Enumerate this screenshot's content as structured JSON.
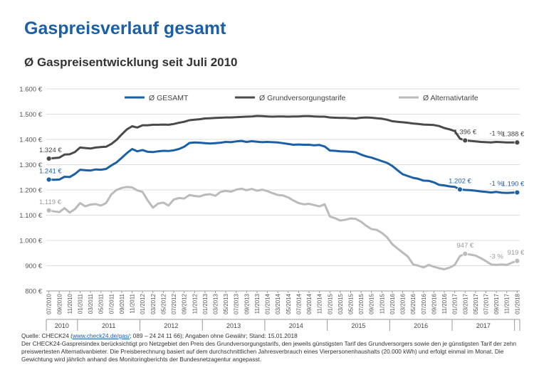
{
  "page": {
    "title": "Gaspreisverlauf gesamt",
    "chart_title": "Ø Gaspreisentwicklung seit Juli 2010"
  },
  "footer": {
    "source_prefix": "Quelle: CHECK24 (",
    "source_link": "www.check24.de/gas/",
    "source_suffix": "; 089 – 24 24 11 66); Angaben ohne Gewähr; Stand: 15.01.2018",
    "note": "Der CHECK24-Gaspreisindex berücksichtigt pro Netzgebiet den Preis des Grundversorgungstarifs, den jeweils günstigsten Tarif des Grundversorgers sowie den je günstigsten Tarif der zehn preiswertesten Alternativanbieter. Die Preisberechnung basiert auf dem durchschnittlichen Jahresverbrauch eines Vierpersonenhaushalts (20.000 kWh) und erfolgt einmal im Monat. Die Gewichtung wird jährlich anhand des Monitoringberichts der Bundesnetzagentur angepasst."
  },
  "chart_data": {
    "type": "line",
    "ylim": [
      800,
      1600
    ],
    "yticks": [
      "800 €",
      "900 €",
      "1.000 €",
      "1.100 €",
      "1.200 €",
      "1.300 €",
      "1.400 €",
      "1.500 €",
      "1.600 €"
    ],
    "grid": true,
    "legend_position": "top",
    "x_tick_labels": [
      "07/2010",
      "09/2010",
      "11/2010",
      "01/2011",
      "03/2011",
      "05/2011",
      "07/2011",
      "09/2011",
      "11/2011",
      "01/2012",
      "03/2012",
      "05/2012",
      "07/2012",
      "09/2012",
      "11/2012",
      "01/2013",
      "03/2013",
      "05/2013",
      "07/2013",
      "09/2013",
      "11/2013",
      "01/2014",
      "03/2014",
      "05/2014",
      "07/2014",
      "09/2014",
      "11/2014",
      "01/2015",
      "03/2015",
      "05/2015",
      "07/2015",
      "09/2015",
      "11/2015",
      "01/2016",
      "03/2016",
      "05/2016",
      "07/2016",
      "09/2016",
      "11/2016",
      "01/2017",
      "03/2017",
      "05/2017",
      "07/2017",
      "09/2017",
      "11/2017",
      "01/2018"
    ],
    "year_labels": [
      "2010",
      "2011",
      "2012",
      "2013",
      "2014",
      "2015",
      "2016",
      "2017"
    ],
    "x": [
      "07/2010",
      "08/2010",
      "09/2010",
      "10/2010",
      "11/2010",
      "12/2010",
      "01/2011",
      "02/2011",
      "03/2011",
      "04/2011",
      "05/2011",
      "06/2011",
      "07/2011",
      "08/2011",
      "09/2011",
      "10/2011",
      "11/2011",
      "12/2011",
      "01/2012",
      "02/2012",
      "03/2012",
      "04/2012",
      "05/2012",
      "06/2012",
      "07/2012",
      "08/2012",
      "09/2012",
      "10/2012",
      "11/2012",
      "12/2012",
      "01/2013",
      "02/2013",
      "03/2013",
      "04/2013",
      "05/2013",
      "06/2013",
      "07/2013",
      "08/2013",
      "09/2013",
      "10/2013",
      "11/2013",
      "12/2013",
      "01/2014",
      "02/2014",
      "03/2014",
      "04/2014",
      "05/2014",
      "06/2014",
      "07/2014",
      "08/2014",
      "09/2014",
      "10/2014",
      "11/2014",
      "12/2014",
      "01/2015",
      "02/2015",
      "03/2015",
      "04/2015",
      "05/2015",
      "06/2015",
      "07/2015",
      "08/2015",
      "09/2015",
      "10/2015",
      "11/2015",
      "12/2015",
      "01/2016",
      "02/2016",
      "03/2016",
      "04/2016",
      "05/2016",
      "06/2016",
      "07/2016",
      "08/2016",
      "09/2016",
      "10/2016",
      "11/2016",
      "12/2016",
      "01/2017",
      "02/2017",
      "03/2017",
      "04/2017",
      "05/2017",
      "06/2017",
      "07/2017",
      "08/2017",
      "09/2017",
      "10/2017",
      "11/2017",
      "12/2017",
      "01/2018"
    ],
    "series": [
      {
        "name": "Ø GESAMT",
        "color": "#1b5fa6",
        "values": [
          1241,
          1240,
          1241,
          1252,
          1251,
          1263,
          1280,
          1278,
          1277,
          1281,
          1280,
          1283,
          1297,
          1309,
          1327,
          1346,
          1362,
          1353,
          1358,
          1351,
          1350,
          1353,
          1355,
          1354,
          1357,
          1362,
          1371,
          1386,
          1388,
          1387,
          1385,
          1384,
          1385,
          1387,
          1390,
          1389,
          1392,
          1394,
          1390,
          1393,
          1391,
          1389,
          1390,
          1389,
          1388,
          1385,
          1382,
          1379,
          1380,
          1379,
          1379,
          1377,
          1378,
          1372,
          1356,
          1355,
          1353,
          1352,
          1351,
          1349,
          1340,
          1333,
          1328,
          1321,
          1314,
          1307,
          1295,
          1278,
          1262,
          1255,
          1248,
          1244,
          1237,
          1236,
          1230,
          1220,
          1218,
          1214,
          1212,
          1202,
          1200,
          1199,
          1197,
          1194,
          1192,
          1190,
          1192,
          1189,
          1188,
          1189,
          1190
        ]
      },
      {
        "name": "Ø Grundversorgungstarife",
        "color": "#4a4a4a",
        "values": [
          1324,
          1326,
          1328,
          1340,
          1341,
          1350,
          1368,
          1366,
          1364,
          1368,
          1370,
          1371,
          1382,
          1398,
          1420,
          1440,
          1452,
          1447,
          1456,
          1456,
          1458,
          1458,
          1459,
          1458,
          1461,
          1466,
          1470,
          1476,
          1478,
          1480,
          1483,
          1484,
          1485,
          1486,
          1487,
          1487,
          1488,
          1489,
          1490,
          1491,
          1493,
          1492,
          1491,
          1490,
          1491,
          1491,
          1490,
          1491,
          1491,
          1492,
          1492,
          1491,
          1490,
          1490,
          1487,
          1486,
          1485,
          1485,
          1484,
          1483,
          1486,
          1487,
          1486,
          1484,
          1482,
          1478,
          1472,
          1470,
          1468,
          1466,
          1463,
          1461,
          1459,
          1458,
          1457,
          1453,
          1445,
          1440,
          1433,
          1403,
          1396,
          1394,
          1392,
          1390,
          1389,
          1388,
          1390,
          1389,
          1388,
          1388,
          1388
        ]
      },
      {
        "name": "Ø Alternativtarife",
        "color": "#bbbbbb",
        "values": [
          1119,
          1115,
          1112,
          1128,
          1110,
          1124,
          1148,
          1135,
          1142,
          1144,
          1138,
          1148,
          1182,
          1200,
          1208,
          1212,
          1210,
          1198,
          1192,
          1158,
          1130,
          1146,
          1150,
          1138,
          1162,
          1168,
          1166,
          1180,
          1176,
          1174,
          1181,
          1183,
          1177,
          1192,
          1196,
          1193,
          1201,
          1205,
          1199,
          1204,
          1197,
          1201,
          1195,
          1187,
          1180,
          1178,
          1170,
          1158,
          1148,
          1143,
          1145,
          1140,
          1135,
          1143,
          1095,
          1088,
          1079,
          1082,
          1087,
          1085,
          1074,
          1058,
          1045,
          1042,
          1030,
          1012,
          985,
          968,
          952,
          936,
          905,
          900,
          893,
          903,
          896,
          890,
          886,
          892,
          903,
          938,
          947,
          944,
          940,
          930,
          918,
          905,
          903,
          905,
          903,
          912,
          919
        ]
      }
    ],
    "annotations": [
      {
        "text": "1.324 €",
        "series": 1,
        "index": 0
      },
      {
        "text": "1.241 €",
        "series": 0,
        "index": 0
      },
      {
        "text": "1.119 €",
        "series": 2,
        "index": 0
      },
      {
        "text": "1.396 €",
        "series": 1,
        "index": 80
      },
      {
        "text": "-1 %",
        "series": 1,
        "index": 86
      },
      {
        "text": "1.388 €",
        "series": 1,
        "index": 90
      },
      {
        "text": "1.202 €",
        "series": 0,
        "index": 79
      },
      {
        "text": "-1 %",
        "series": 0,
        "index": 86
      },
      {
        "text": "1.190 €",
        "series": 0,
        "index": 90
      },
      {
        "text": "947 €",
        "series": 2,
        "index": 80
      },
      {
        "text": "-3 %",
        "series": 2,
        "index": 86
      },
      {
        "text": "919 €",
        "series": 2,
        "index": 90
      }
    ]
  }
}
